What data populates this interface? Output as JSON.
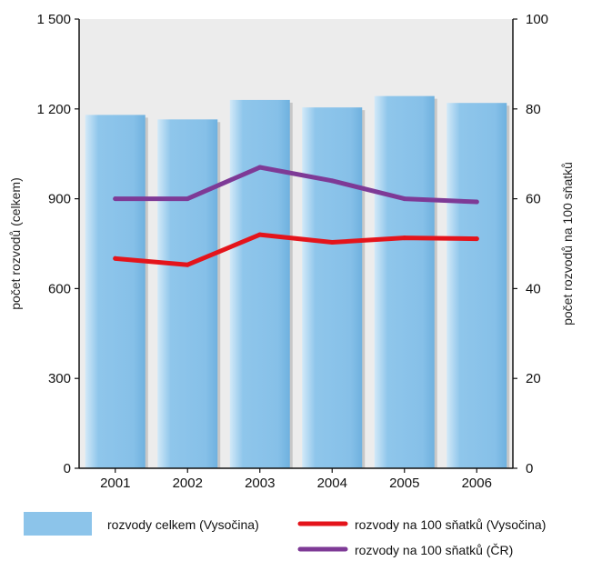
{
  "chart_data": {
    "type": "bar",
    "categories": [
      "2001",
      "2002",
      "2003",
      "2004",
      "2005",
      "2006"
    ],
    "series": [
      {
        "name": "rozvody celkem (Vysočina)",
        "type": "bar",
        "axis": "left",
        "values": [
          1180,
          1165,
          1230,
          1205,
          1243,
          1220
        ],
        "color": "#8cc4ea"
      },
      {
        "name": "rozvody na 100 sňatků (Vysočina)",
        "type": "line",
        "axis": "right",
        "values": [
          46.7,
          45.3,
          52.0,
          50.3,
          51.3,
          51.1
        ],
        "color": "#e4141b"
      },
      {
        "name": "rozvody na 100 sňatků (ČR)",
        "type": "line",
        "axis": "right",
        "values": [
          60.0,
          60.0,
          67.0,
          64.0,
          60.0,
          59.3
        ],
        "color": "#7e3a96"
      }
    ],
    "ylabel": "počet rozvodů (celkem)",
    "y2label": "počet rozvodů na 100 sňatků",
    "ylim": [
      0,
      1500
    ],
    "y2lim": [
      0,
      100
    ],
    "yticks": [
      0,
      300,
      600,
      900,
      1200,
      1500
    ],
    "yticklabels": [
      "0",
      "300",
      "600",
      "900",
      "1 200",
      "1 500"
    ],
    "y2ticks": [
      0,
      20,
      40,
      60,
      80,
      100
    ],
    "y2ticklabels": [
      "0",
      "20",
      "40",
      "60",
      "80",
      "100"
    ],
    "plot_background": "#ececec",
    "legend_position": "bottom",
    "grid": false
  }
}
